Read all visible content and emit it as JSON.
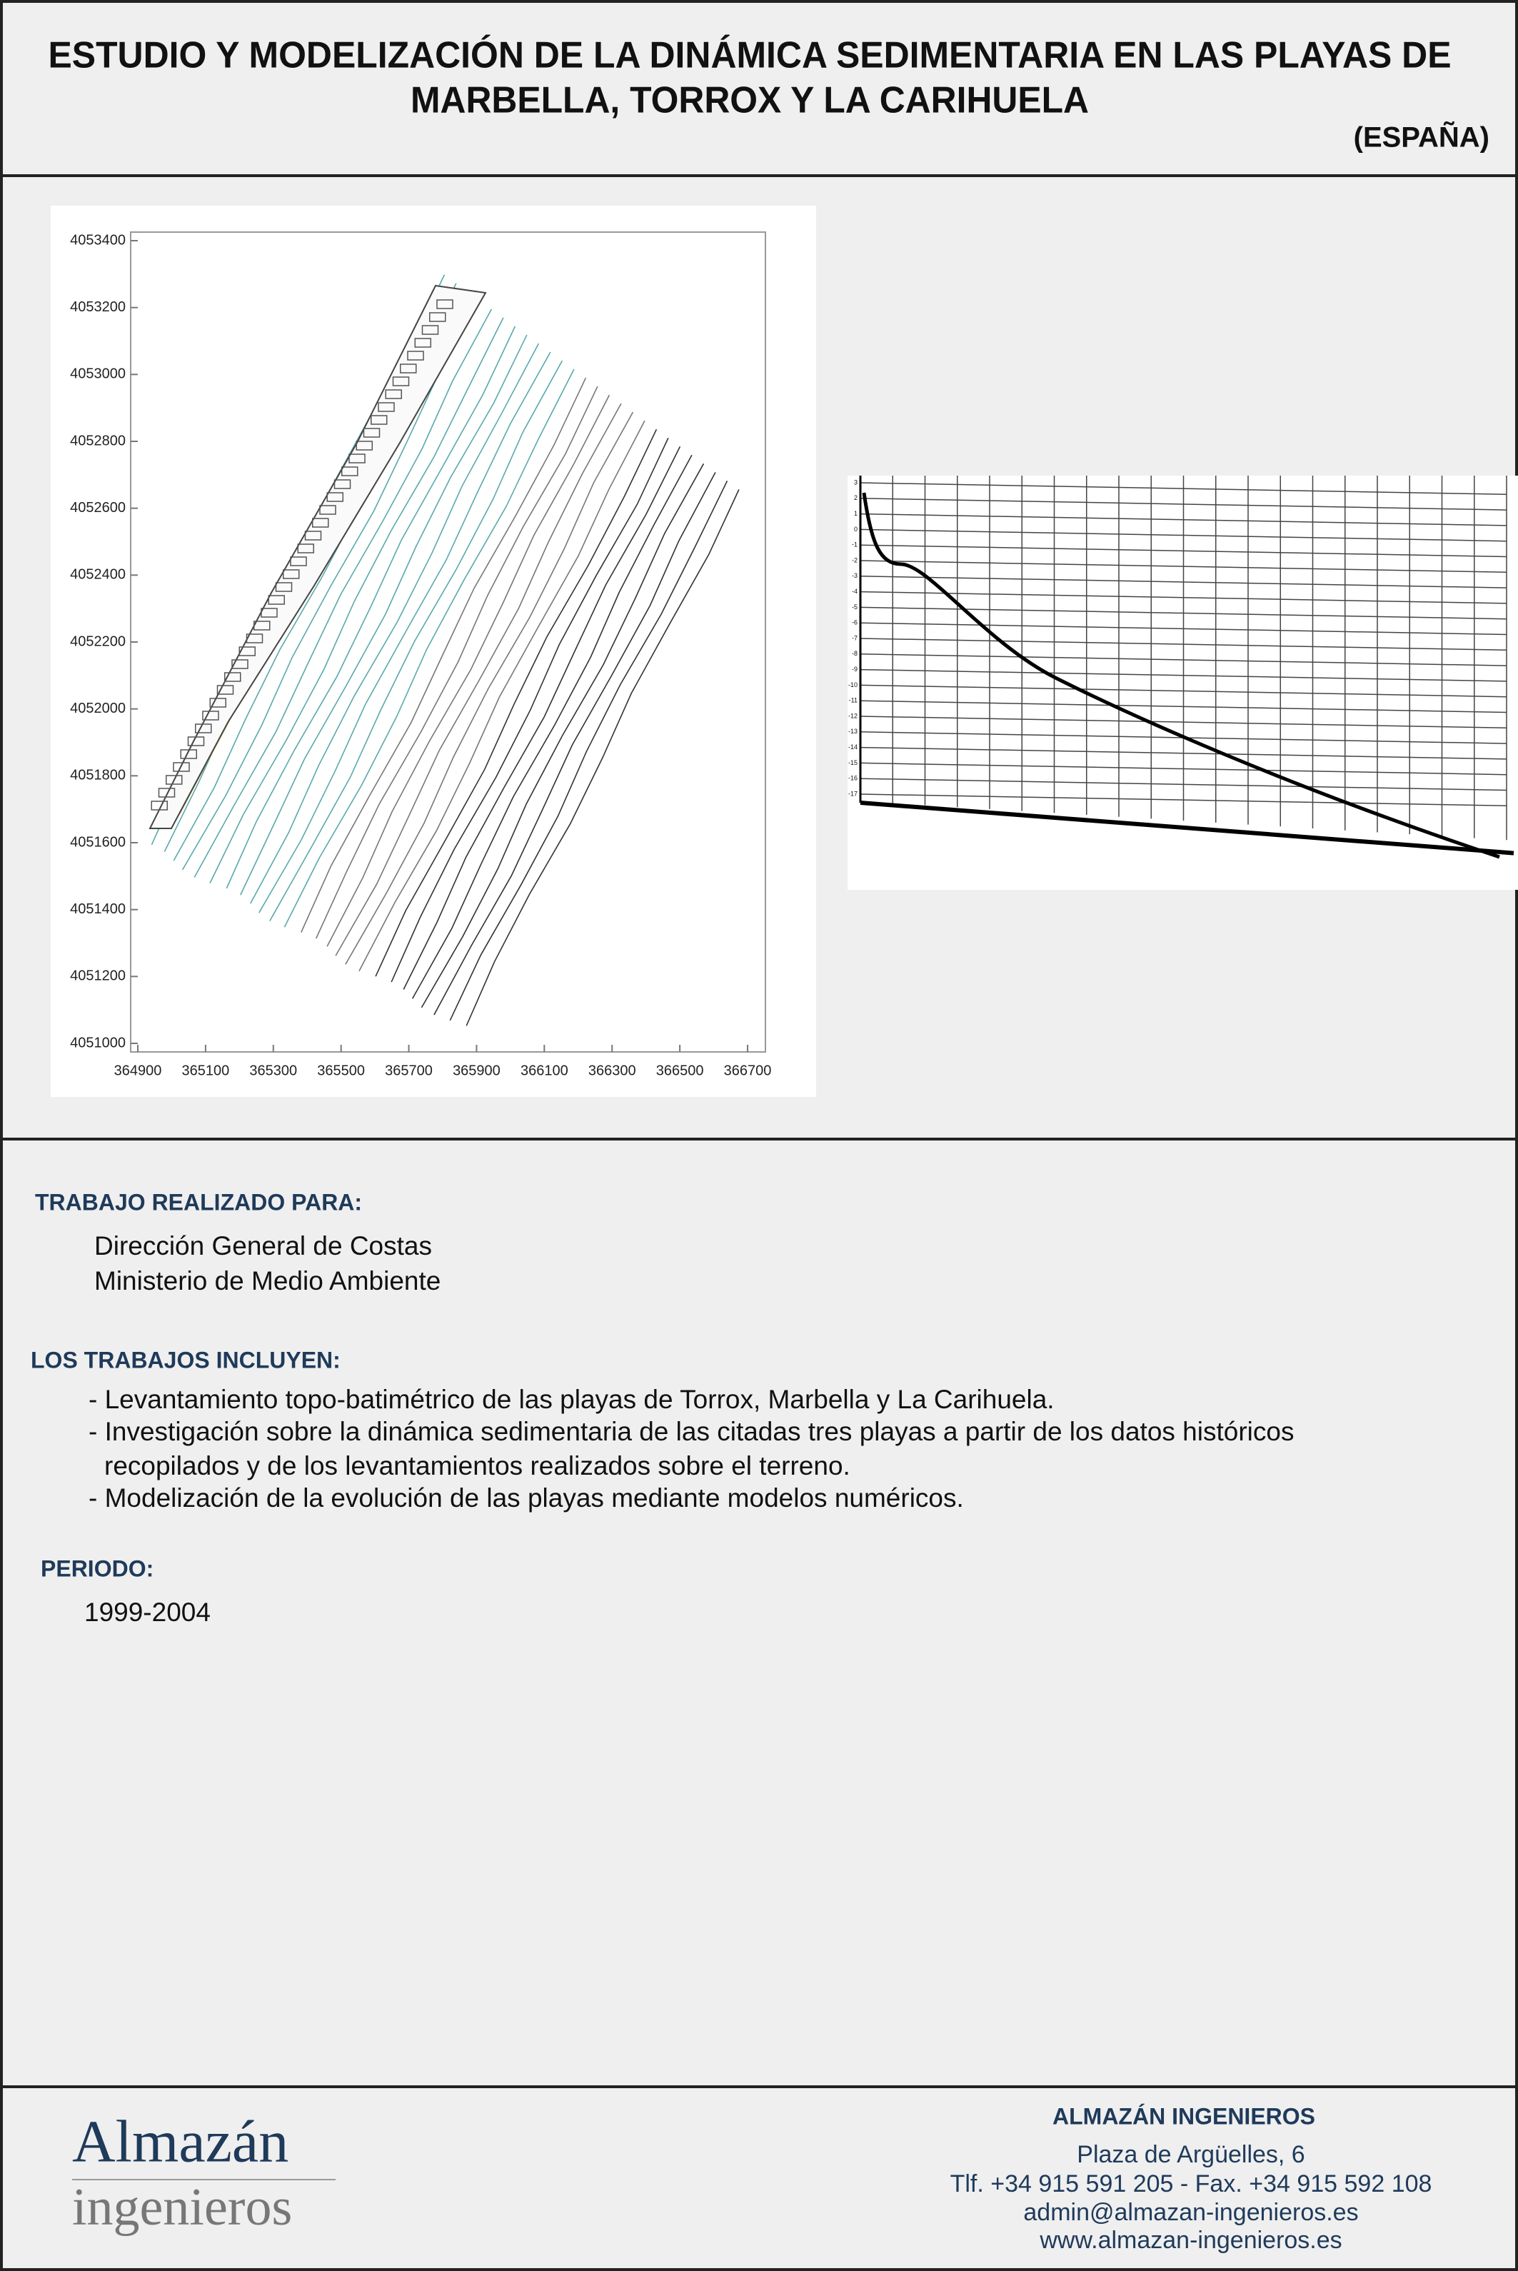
{
  "header": {
    "title": [
      "ESTUDIO Y MODELIZACIÓN DE LA DINÁMICA SEDIMENTARIA EN LAS PLAYAS DE",
      "MARBELLA, TORROX Y LA CARIHUELA"
    ],
    "country": "(ESPAÑA)"
  },
  "figures": {
    "map": {
      "xlim": [
        364900,
        366700
      ],
      "ylim": [
        4051000,
        4053400
      ],
      "xticks": [
        364900,
        365100,
        365300,
        365500,
        365700,
        365900,
        366100,
        366300,
        366500,
        366700
      ],
      "yticks": [
        4051000,
        4051200,
        4051400,
        4051600,
        4051800,
        4052000,
        4052200,
        4052400,
        4052600,
        4052800,
        4053000,
        4053200,
        4053400
      ]
    },
    "profile": {
      "ylim": [
        3,
        -17
      ],
      "yticks": [
        3,
        2,
        1,
        0,
        -1,
        -2,
        -3,
        -4,
        -5,
        -6,
        -7,
        -8,
        -9,
        -10,
        -11,
        -12,
        -13,
        -14,
        -15,
        -16,
        -17
      ]
    }
  },
  "client": {
    "heading": "TRABAJO REALIZADO PARA:",
    "lines": [
      "Dirección General de Costas",
      "Ministerio de Medio Ambiente"
    ]
  },
  "works": {
    "heading": "LOS TRABAJOS INCLUYEN:",
    "items": [
      "- Levantamiento topo-batimétrico de las playas de Torrox, Marbella y La Carihuela.",
      "- Investigación sobre la dinámica sedimentaria de las citadas tres playas a partir de los datos históricos",
      "recopilados y de los levantamientos realizados sobre el terreno.",
      "- Modelización de la evolución de las playas mediante modelos numéricos."
    ]
  },
  "period": {
    "heading": "PERIODO:",
    "value": "1999-2004"
  },
  "footer": {
    "logo": [
      "Almazán",
      "ingenieros"
    ],
    "company": "ALMAZÁN INGENIEROS",
    "contact": [
      "Plaza de Argüelles, 6",
      "Tlf. +34 915 591 205 - Fax. +34 915 592 108",
      "admin@almazan-ingenieros.es",
      "www.almazan-ingenieros.es"
    ]
  }
}
